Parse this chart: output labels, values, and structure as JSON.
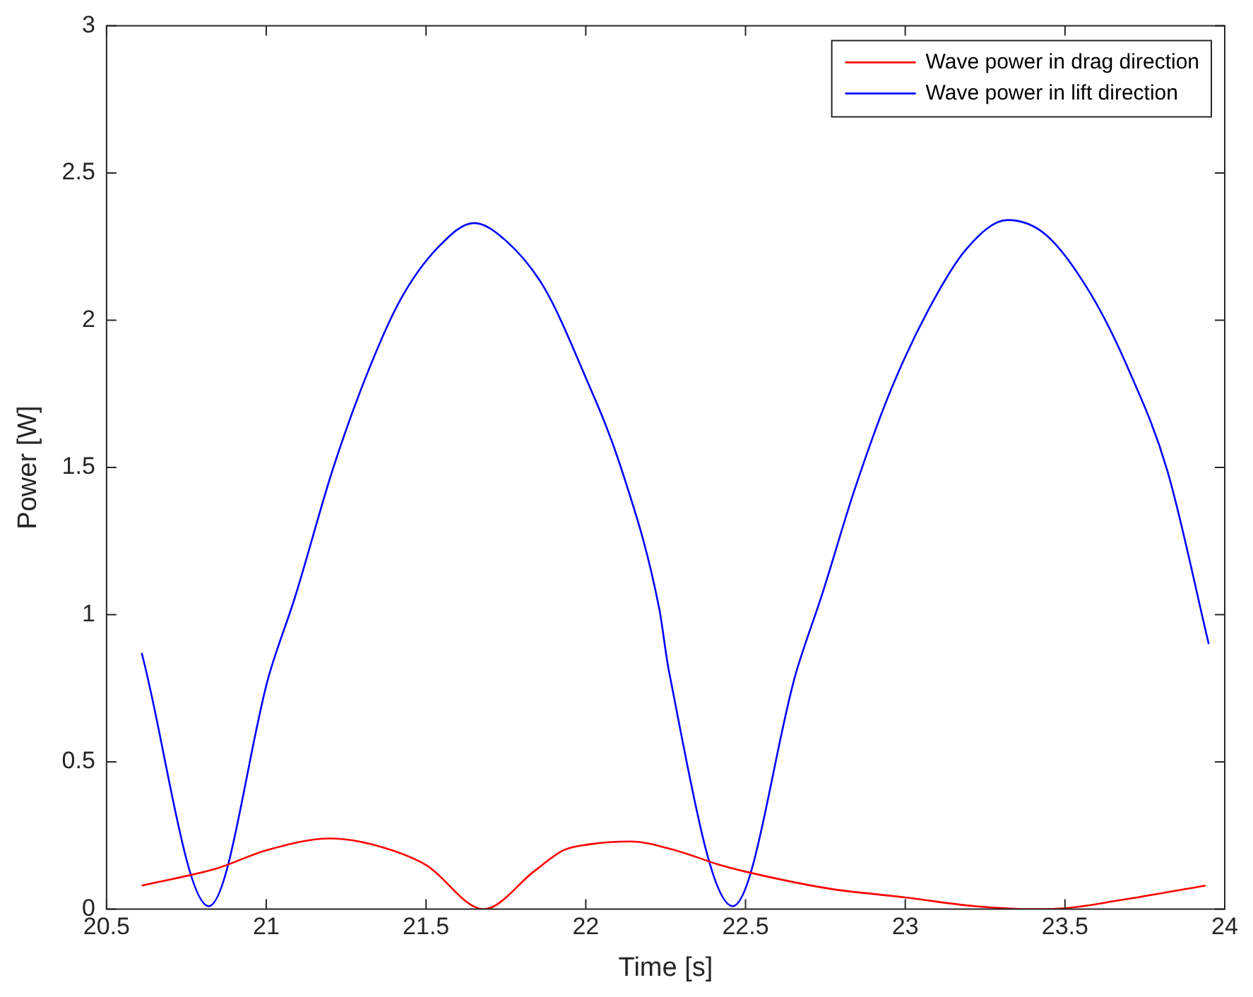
{
  "chart_data": {
    "type": "line",
    "xlabel": "Time [s]",
    "ylabel": "Power [W]",
    "xlim": [
      20.5,
      24
    ],
    "xticks": [
      20.5,
      21,
      21.5,
      22,
      22.5,
      23,
      23.5,
      24
    ],
    "ylim": [
      0,
      3
    ],
    "yticks": [
      0,
      0.5,
      1,
      1.5,
      2,
      2.5,
      3
    ],
    "grid": false,
    "legend": "top right",
    "marker": "none",
    "line_style": "solid",
    "series": [
      {
        "name": "Wave power in drag direction",
        "color": "#ff0000",
        "x": [
          20.61,
          20.85,
          21.0,
          21.2,
          21.33,
          21.5,
          21.68,
          21.84,
          21.93,
          22.01,
          22.14,
          22.28,
          22.42,
          22.49,
          22.76,
          23.0,
          23.22,
          23.41,
          23.5,
          23.67,
          23.94
        ],
        "values": [
          0.08,
          0.14,
          0.2,
          0.24,
          0.22,
          0.15,
          0,
          0.13,
          0.2,
          0.22,
          0.23,
          0.2,
          0.15,
          0.13,
          0.07,
          0.04,
          0.01,
          0,
          0.003,
          0.03,
          0.08
        ]
      },
      {
        "name": "Wave power in lift direction",
        "color": "#0000ff",
        "x": [
          20.61,
          20.82,
          21.01,
          21.09,
          21.21,
          21.32,
          21.42,
          21.54,
          21.65,
          21.75,
          21.87,
          21.99,
          22.11,
          22.23,
          22.26,
          22.46,
          22.66,
          22.74,
          22.84,
          22.95,
          23.07,
          23.19,
          23.32,
          23.44,
          23.58,
          23.7,
          23.82,
          23.95
        ],
        "values": [
          0.87,
          0.01,
          0.8,
          1.06,
          1.5,
          1.83,
          2.07,
          2.25,
          2.33,
          2.27,
          2.11,
          1.83,
          1.5,
          1.02,
          0.81,
          0.01,
          0.81,
          1.07,
          1.42,
          1.75,
          2.03,
          2.24,
          2.34,
          2.29,
          2.09,
          1.83,
          1.49,
          0.9
        ]
      }
    ]
  }
}
